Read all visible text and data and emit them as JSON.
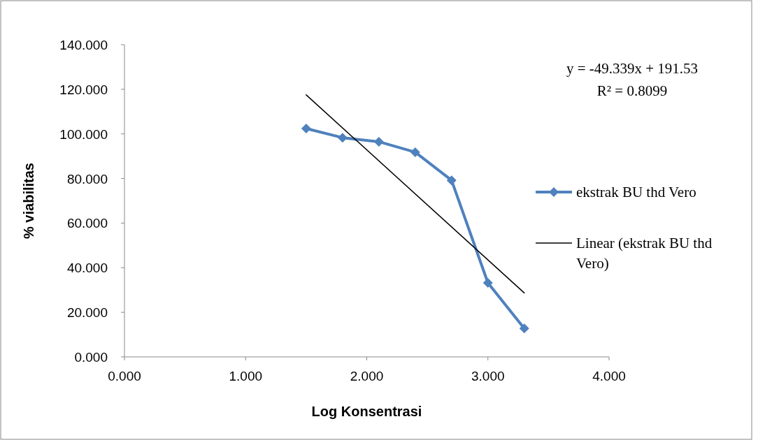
{
  "chart_data": {
    "type": "line",
    "xlabel": "Log Konsentrasi",
    "ylabel": "% viabilitas",
    "x": [
      1.5,
      1.8,
      2.1,
      2.4,
      2.7,
      3.0,
      3.3
    ],
    "series": [
      {
        "name": "ekstrak BU thd Vero",
        "color": "#4f81bd",
        "marker": "diamond",
        "values": [
          102.4,
          98.3,
          96.5,
          91.8,
          79.2,
          33.2,
          12.8
        ]
      },
      {
        "name": "Linear (ekstrak BU thd Vero)",
        "color": "#000000",
        "type": "line",
        "marker": "none",
        "x": [
          1.5,
          3.3
        ],
        "values": [
          117.5,
          28.7
        ]
      }
    ],
    "xlim": [
      0,
      4
    ],
    "ylim": [
      0,
      140
    ],
    "xticks": [
      {
        "value": 0,
        "label": "0.000"
      },
      {
        "value": 1,
        "label": "1.000"
      },
      {
        "value": 2,
        "label": "2.000"
      },
      {
        "value": 3,
        "label": "3.000"
      },
      {
        "value": 4,
        "label": "4.000"
      }
    ],
    "yticks": [
      {
        "value": 0,
        "label": "0.000"
      },
      {
        "value": 20,
        "label": "20.000"
      },
      {
        "value": 40,
        "label": "40.000"
      },
      {
        "value": 60,
        "label": "60.000"
      },
      {
        "value": 80,
        "label": "80.000"
      },
      {
        "value": 100,
        "label": "100.000"
      },
      {
        "value": 120,
        "label": "120.000"
      },
      {
        "value": 140,
        "label": "140.000"
      }
    ],
    "annotations": [
      "y = -49.339x + 191.53",
      "R² = 0.8099"
    ],
    "legend": "right",
    "grid": false
  }
}
